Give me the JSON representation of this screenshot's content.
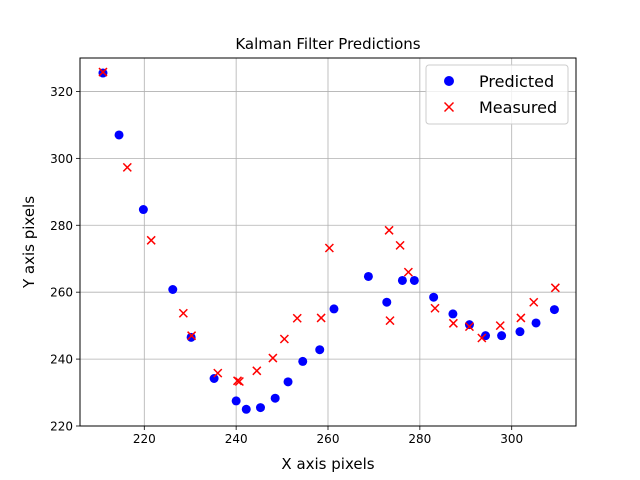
{
  "chart_data": {
    "type": "scatter",
    "title": "Kalman Filter Predictions",
    "xlabel": "X axis pixels",
    "ylabel": "Y axis pixels",
    "xlim": [
      206,
      314
    ],
    "ylim": [
      220,
      330
    ],
    "xticks": [
      220,
      240,
      260,
      280,
      300
    ],
    "yticks": [
      220,
      240,
      260,
      280,
      300,
      320
    ],
    "grid": true,
    "legend_position": "top-right",
    "series": [
      {
        "name": "Predicted",
        "marker": "circle",
        "color": "#0000ff",
        "points": [
          [
            211.0,
            325.5
          ],
          [
            214.5,
            307.0
          ],
          [
            219.8,
            284.7
          ],
          [
            226.2,
            260.8
          ],
          [
            230.2,
            246.5
          ],
          [
            235.2,
            234.2
          ],
          [
            240.0,
            227.5
          ],
          [
            242.2,
            225.0
          ],
          [
            245.3,
            225.5
          ],
          [
            248.5,
            228.3
          ],
          [
            251.3,
            233.2
          ],
          [
            254.5,
            239.3
          ],
          [
            258.2,
            242.8
          ],
          [
            261.3,
            255.0
          ],
          [
            268.8,
            264.7
          ],
          [
            272.8,
            257.0
          ],
          [
            276.2,
            263.5
          ],
          [
            278.8,
            263.5
          ],
          [
            283.0,
            258.5
          ],
          [
            287.2,
            253.5
          ],
          [
            290.8,
            250.3
          ],
          [
            294.3,
            247.0
          ],
          [
            297.8,
            247.0
          ],
          [
            301.8,
            248.2
          ],
          [
            305.3,
            250.8
          ],
          [
            309.3,
            254.8
          ]
        ]
      },
      {
        "name": "Measured",
        "marker": "x",
        "color": "#ff0000",
        "points": [
          [
            211.0,
            325.8
          ],
          [
            216.3,
            297.3
          ],
          [
            221.5,
            275.5
          ],
          [
            228.5,
            253.7
          ],
          [
            230.3,
            247.0
          ],
          [
            236.0,
            235.8
          ],
          [
            240.3,
            233.5
          ],
          [
            240.7,
            233.3
          ],
          [
            244.5,
            236.5
          ],
          [
            248.0,
            240.3
          ],
          [
            250.5,
            246.0
          ],
          [
            253.3,
            252.2
          ],
          [
            258.5,
            252.3
          ],
          [
            260.3,
            273.2
          ],
          [
            273.3,
            278.5
          ],
          [
            273.5,
            251.5
          ],
          [
            275.7,
            274.0
          ],
          [
            277.5,
            266.0
          ],
          [
            283.3,
            255.2
          ],
          [
            287.3,
            250.7
          ],
          [
            290.8,
            249.7
          ],
          [
            293.5,
            246.3
          ],
          [
            297.5,
            250.0
          ],
          [
            302.0,
            252.3
          ],
          [
            304.8,
            257.0
          ],
          [
            309.5,
            261.3
          ]
        ]
      }
    ]
  }
}
